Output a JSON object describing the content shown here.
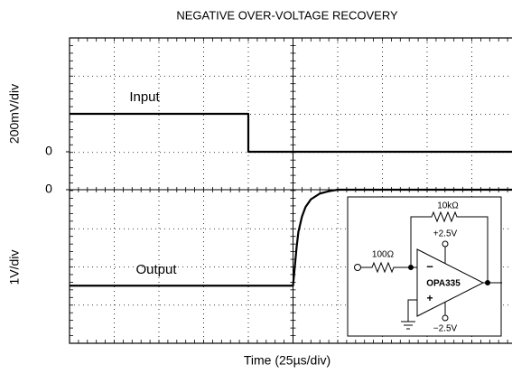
{
  "chart_data": {
    "type": "line",
    "title": "NEGATIVE OVER-VOLTAGE RECOVERY",
    "xlabel": "Time (25µs/div)",
    "xlim": [
      0,
      250
    ],
    "series": [
      {
        "name": "Input",
        "ylabel": "200mV/div",
        "color": "#000000",
        "ylim": [
          -0.2,
          0.6
        ],
        "yticks": [
          0
        ],
        "x": [
          0,
          100,
          100,
          250
        ],
        "values": [
          0.2,
          0.2,
          0,
          0
        ]
      },
      {
        "name": "Output",
        "ylabel": "1V/div",
        "color": "#000000",
        "ylim": [
          -4,
          0
        ],
        "yticks": [
          0
        ],
        "x": [
          0,
          125,
          126,
          127,
          128,
          130,
          132,
          135,
          140,
          145,
          150,
          250
        ],
        "values": [
          -2.5,
          -2.5,
          -2.0,
          -1.5,
          -1.1,
          -0.7,
          -0.45,
          -0.25,
          -0.1,
          -0.04,
          0,
          0
        ]
      }
    ]
  },
  "inset": {
    "r_feedback": "10kΩ",
    "v_pos": "+2.5V",
    "r_in": "100Ω",
    "opamp": "OPA335",
    "v_neg": "−2.5V",
    "inv": "−",
    "noninv": "+"
  }
}
